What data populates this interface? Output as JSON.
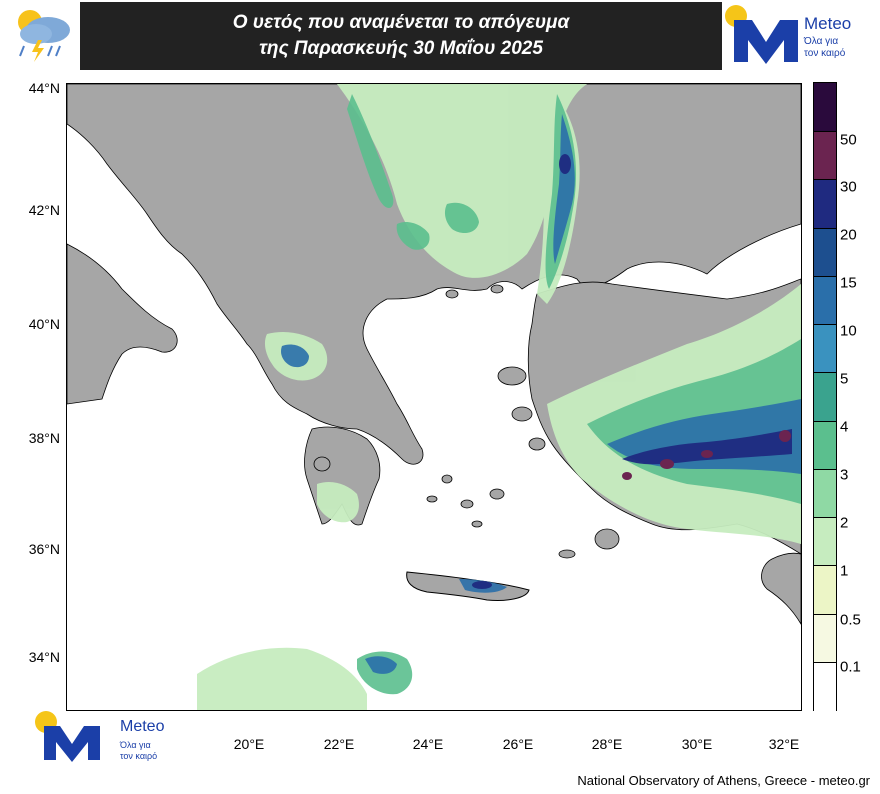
{
  "title": {
    "line1": "Ο υετός που αναμένεται το απόγευμα",
    "line2": "της Παρασκευής 30 Μαΐου 2025"
  },
  "logo": {
    "name": "Meteo",
    "tagline_1": "Όλα για",
    "tagline_2": "τον καιρό"
  },
  "credit": "National Observatory of Athens, Greece - meteo.gr",
  "axes": {
    "latitude_ticks": [
      "44°N",
      "42°N",
      "40°N",
      "38°N",
      "36°N",
      "34°N"
    ],
    "longitude_ticks": [
      "20°E",
      "22°E",
      "24°E",
      "26°E",
      "28°E",
      "30°E",
      "32°E"
    ]
  },
  "legend": {
    "labels": [
      "50",
      "30",
      "20",
      "15",
      "10",
      "5",
      "4",
      "3",
      "2",
      "1",
      "0.5",
      "0.1"
    ],
    "colors": [
      "#2a0a3c",
      "#6b2450",
      "#1f2a80",
      "#1d4f8f",
      "#2a6faa",
      "#3a92bf",
      "#3aa38e",
      "#5bbf8e",
      "#8fd9a4",
      "#c6ecbf",
      "#ecf5c6",
      "#f6f9e2",
      "#ffffff"
    ]
  },
  "colors": {
    "land": "#a6a6a6",
    "sea": "#ffffff",
    "border": "#000000"
  }
}
